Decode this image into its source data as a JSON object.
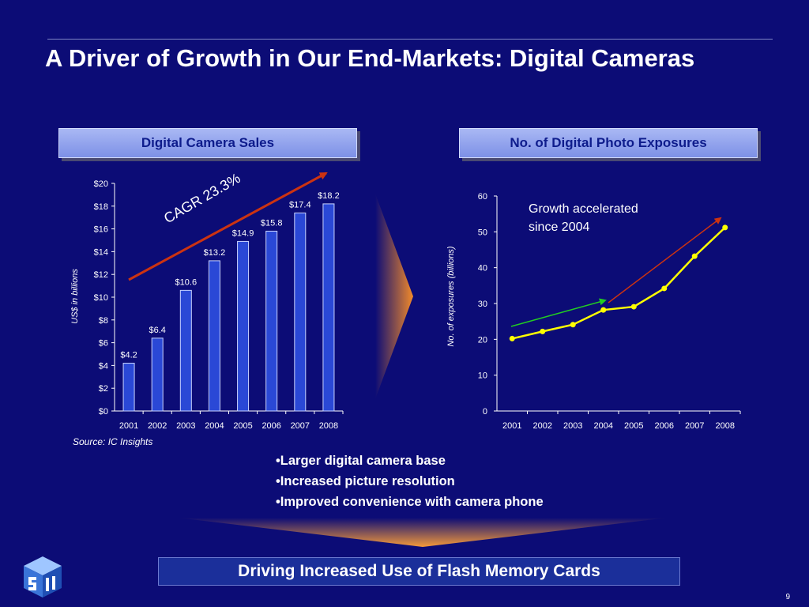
{
  "slide": {
    "title": "A Driver of Growth in Our End-Markets: Digital Cameras",
    "page_number": "9",
    "source": "Source: IC Insights",
    "bullets": [
      "•Larger digital camera base",
      "•Increased picture resolution",
      "•Improved convenience with camera phone"
    ],
    "conclusion": "Driving Increased Use of Flash Memory Cards",
    "colors": {
      "background": "#0c0c76",
      "bar": "#2a48d6",
      "line": "#ffff00",
      "red_arrow": "#cc3311",
      "green_arrow": "#22cc22"
    }
  },
  "chart_data": [
    {
      "type": "bar",
      "panel_title": "Digital Camera Sales",
      "annotation": "CAGR 23.3%",
      "ylabel": "US$ in billions",
      "categories": [
        "2001",
        "2002",
        "2003",
        "2004",
        "2005",
        "2006",
        "2007",
        "2008"
      ],
      "values": [
        4.2,
        6.4,
        10.6,
        13.2,
        14.9,
        15.8,
        17.4,
        18.2
      ],
      "data_labels": [
        "$4.2",
        "$6.4",
        "$10.6",
        "$13.2",
        "$14.9",
        "$15.8",
        "$17.4",
        "$18.2"
      ],
      "ylim": [
        0,
        20
      ],
      "yticks": [
        0,
        2,
        4,
        6,
        8,
        10,
        12,
        14,
        16,
        18,
        20
      ],
      "ytick_labels": [
        "$0",
        "$2",
        "$4",
        "$6",
        "$8",
        "$10",
        "$12",
        "$14",
        "$16",
        "$18",
        "$20"
      ]
    },
    {
      "type": "line",
      "panel_title": "No. of Digital Photo Exposures",
      "annotation": "Growth accelerated since 2004",
      "annotation_lines": [
        "Growth accelerated",
        "since 2004"
      ],
      "ylabel": "No. of exposures (billions)",
      "categories": [
        "2001",
        "2002",
        "2003",
        "2004",
        "2005",
        "2006",
        "2007",
        "2008"
      ],
      "values": [
        20.2,
        22.2,
        24.1,
        28.2,
        29.1,
        34.2,
        43.2,
        51.2
      ],
      "ylim": [
        0,
        60
      ],
      "yticks": [
        0,
        10,
        20,
        30,
        40,
        50,
        60
      ],
      "ytick_labels": [
        "0",
        "10",
        "20",
        "30",
        "40",
        "50",
        "60"
      ]
    }
  ]
}
